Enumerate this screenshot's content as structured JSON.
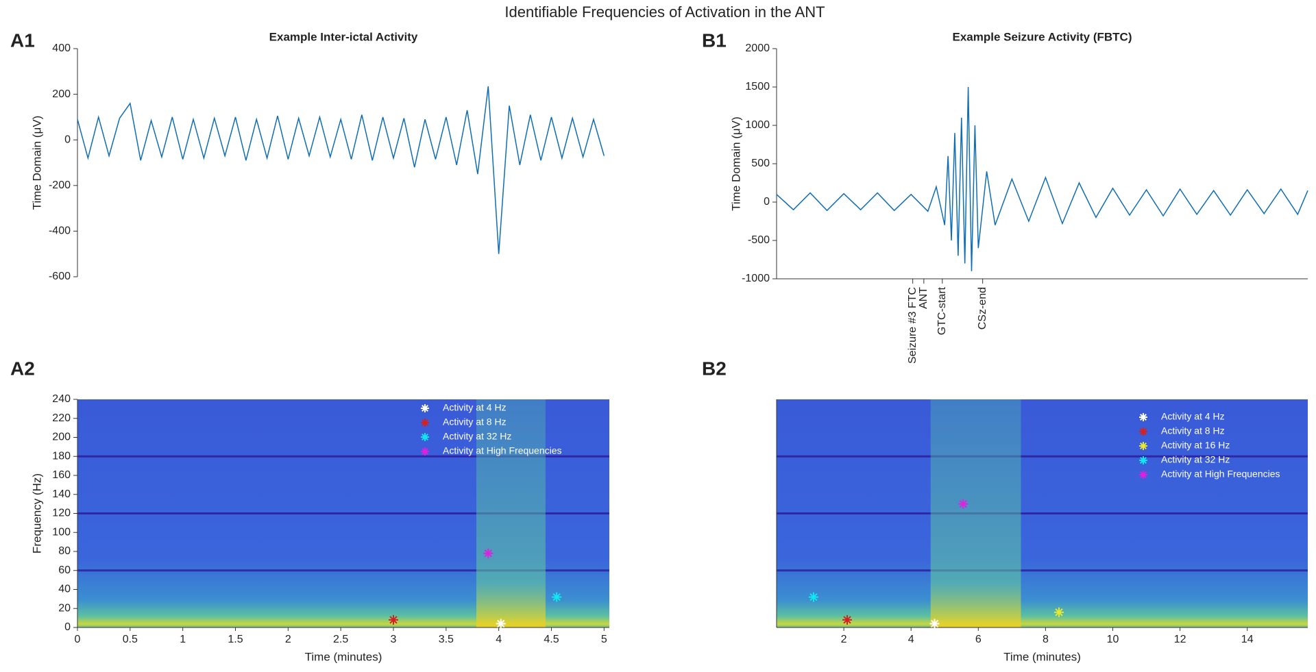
{
  "title": "Identifiable Frequencies of Activation in the ANT",
  "chart_data": [
    {
      "type": "line",
      "panel_label": "A1",
      "title": "Example Inter-ictal Activity",
      "ylabel": "Time Domain (μV)",
      "color": "#0f6db5",
      "xlim": [
        0,
        5.05
      ],
      "ylim": [
        -600,
        400
      ],
      "yticks": [
        -600,
        -400,
        -200,
        0,
        200,
        400
      ],
      "xaxis_visible": false,
      "x": [
        0,
        0.1,
        0.2,
        0.3,
        0.4,
        0.5,
        0.6,
        0.7,
        0.8,
        0.9,
        1,
        1.1,
        1.2,
        1.3,
        1.4,
        1.5,
        1.6,
        1.7,
        1.8,
        1.9,
        2,
        2.1,
        2.2,
        2.3,
        2.4,
        2.5,
        2.6,
        2.7,
        2.8,
        2.9,
        3,
        3.1,
        3.2,
        3.3,
        3.4,
        3.5,
        3.6,
        3.7,
        3.8,
        3.9,
        4,
        4.1,
        4.2,
        4.3,
        4.4,
        4.5,
        4.6,
        4.7,
        4.8,
        4.9,
        5
      ],
      "values": [
        90,
        -80,
        100,
        -70,
        95,
        160,
        -90,
        85,
        -75,
        100,
        -85,
        90,
        -80,
        95,
        -70,
        100,
        -90,
        90,
        -80,
        105,
        -85,
        95,
        -70,
        100,
        -75,
        90,
        -85,
        110,
        -90,
        100,
        -80,
        95,
        -120,
        90,
        -85,
        100,
        -110,
        130,
        -150,
        235,
        -500,
        150,
        -110,
        110,
        -90,
        100,
        -80,
        95,
        -75,
        90,
        -70
      ]
    },
    {
      "type": "line",
      "panel_label": "B1",
      "title": "Example Seizure Activity (FBTC)",
      "ylabel": "Time Domain (μV)",
      "color": "#0f6db5",
      "xlim": [
        0,
        15.8
      ],
      "ylim": [
        -1000,
        2000
      ],
      "yticks": [
        -1000,
        -500,
        0,
        500,
        1000,
        1500,
        2000
      ],
      "xaxis_visible": true,
      "x": [
        0,
        0.5,
        1,
        1.5,
        2,
        2.5,
        3,
        3.5,
        4,
        4.5,
        4.75,
        5,
        5.1,
        5.2,
        5.3,
        5.4,
        5.5,
        5.6,
        5.7,
        5.8,
        5.9,
        6,
        6.25,
        6.5,
        7,
        7.5,
        8,
        8.5,
        9,
        9.5,
        10,
        10.5,
        11,
        11.5,
        12,
        12.5,
        13,
        13.5,
        14,
        14.5,
        15,
        15.5,
        15.8
      ],
      "values": [
        100,
        -100,
        120,
        -110,
        110,
        -100,
        120,
        -110,
        100,
        -120,
        200,
        -300,
        600,
        -500,
        900,
        -700,
        1100,
        -800,
        1500,
        -900,
        1000,
        -600,
        400,
        -300,
        300,
        -250,
        320,
        -280,
        250,
        -200,
        180,
        -170,
        160,
        -180,
        170,
        -160,
        150,
        -170,
        160,
        -150,
        170,
        -160,
        150
      ],
      "annotations": [
        {
          "x": 4.05,
          "text": "Seizure #3 FTC"
        },
        {
          "x": 4.38,
          "text": "ANT"
        },
        {
          "x": 4.93,
          "text": "GTC-start"
        },
        {
          "x": 6.13,
          "text": "CSz-end"
        }
      ]
    },
    {
      "type": "scatter",
      "panel_label": "A2",
      "xlabel": "Time (minutes)",
      "ylabel": "Frequency (Hz)",
      "xlim": [
        0,
        5.05
      ],
      "ylim": [
        0,
        240
      ],
      "xticks": [
        0,
        0.5,
        1,
        1.5,
        2,
        2.5,
        3,
        3.5,
        4,
        4.5,
        5
      ],
      "yticks": [
        0,
        20,
        40,
        60,
        80,
        100,
        120,
        140,
        160,
        180,
        200,
        220,
        240
      ],
      "legend": true,
      "series": [
        {
          "name": "Activity at 4 Hz",
          "color": "#ffffff",
          "x": [
            4.02
          ],
          "values": [
            4
          ]
        },
        {
          "name": "Activity at 8 Hz",
          "color": "#d62020",
          "x": [
            3.0
          ],
          "values": [
            8
          ]
        },
        {
          "name": "Activity at 32 Hz",
          "color": "#10e8f0",
          "x": [
            4.55
          ],
          "values": [
            32
          ]
        },
        {
          "name": "Activity at High Frequencies",
          "color": "#e020e0",
          "x": [
            3.9
          ],
          "values": [
            78
          ]
        }
      ]
    },
    {
      "type": "scatter",
      "panel_label": "B2",
      "xlabel": "Time (minutes)",
      "xlim": [
        0,
        15.8
      ],
      "ylim": [
        0,
        240
      ],
      "xticks": [
        2,
        4,
        6,
        8,
        10,
        12,
        14
      ],
      "legend": true,
      "series": [
        {
          "name": "Activity at 4 Hz",
          "color": "#ffffff",
          "x": [
            4.7
          ],
          "values": [
            4
          ]
        },
        {
          "name": "Activity at 8 Hz",
          "color": "#d62020",
          "x": [
            2.1
          ],
          "values": [
            8
          ]
        },
        {
          "name": "Activity at 16 Hz",
          "color": "#e8e830",
          "x": [
            8.4
          ],
          "values": [
            16
          ]
        },
        {
          "name": "Activity at 32 Hz",
          "color": "#10e8f0",
          "x": [
            1.1
          ],
          "values": [
            32
          ]
        },
        {
          "name": "Activity at High Frequencies",
          "color": "#e020e0",
          "x": [
            5.55
          ],
          "values": [
            130
          ]
        }
      ]
    }
  ]
}
